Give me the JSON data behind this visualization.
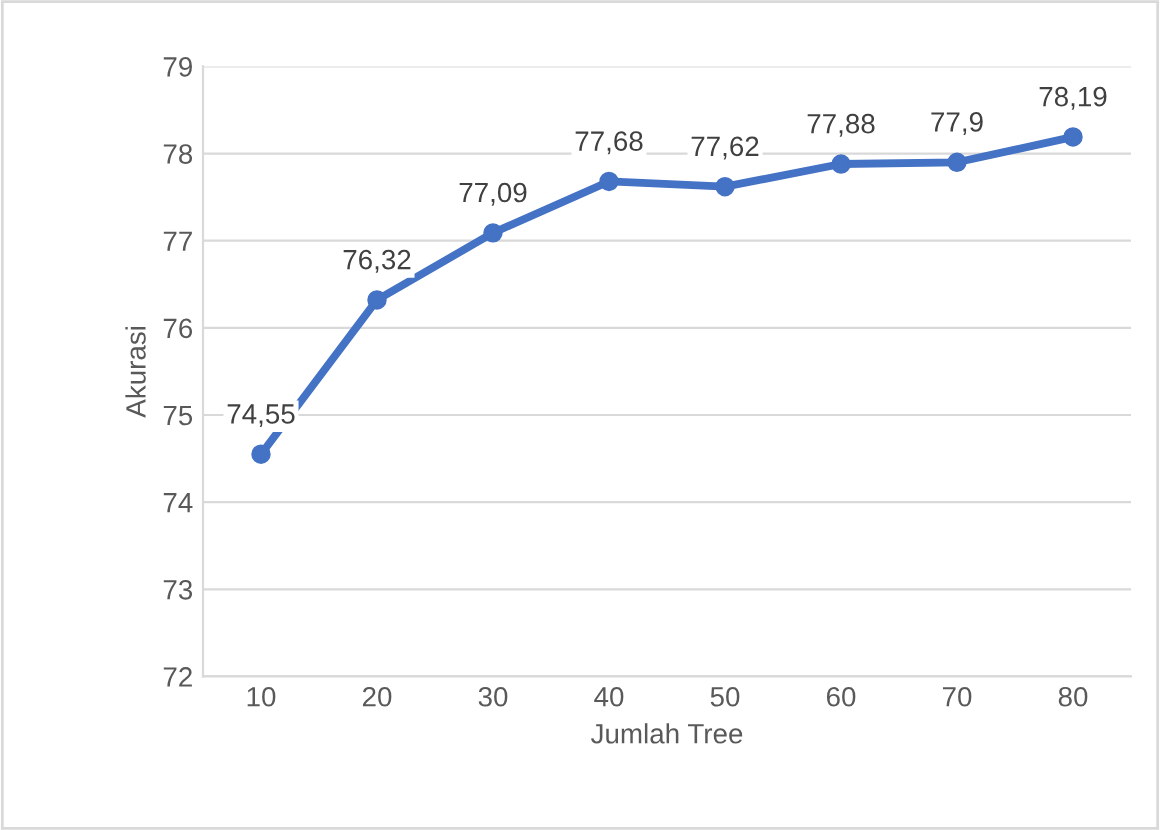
{
  "chart_data": {
    "type": "line",
    "xlabel": "Jumlah Tree",
    "ylabel": "Akurasi",
    "categories": [
      "10",
      "20",
      "30",
      "40",
      "50",
      "60",
      "70",
      "80"
    ],
    "series": [
      {
        "color": "#4472c4",
        "values": [
          74.55,
          76.32,
          77.09,
          77.68,
          77.62,
          77.88,
          77.9,
          78.19
        ],
        "value_labels": [
          "74,55",
          "76,32",
          "77,09",
          "77,68",
          "77,62",
          "77,88",
          "77,9",
          "78,19"
        ]
      }
    ],
    "ylim": [
      72,
      79
    ],
    "yticks": [
      72,
      73,
      74,
      75,
      76,
      77,
      78,
      79
    ],
    "grid": "y",
    "marker": "circle",
    "line_style": "solid",
    "legend": false
  }
}
